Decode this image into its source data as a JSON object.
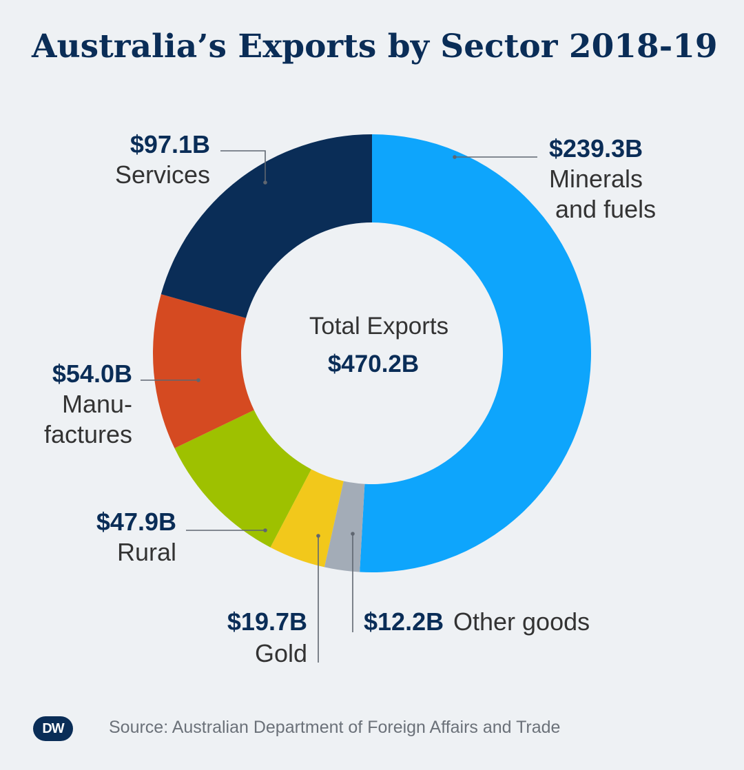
{
  "title": "Australia’s Exports by Sector 2018-19",
  "logo_text": "DW",
  "source": "Source: Australian Department of Foreign Affairs and Trade",
  "chart_data": {
    "type": "pie",
    "variant": "donut",
    "title": "Australia’s Exports by Sector 2018-19",
    "unit": "billion AUD",
    "center_label": "Total Exports",
    "center_value_label": "$470.2B",
    "total": 470.2,
    "slices": [
      {
        "key": "minerals",
        "value_label": "$239.3B",
        "label_lines": [
          "Minerals",
          "and fuels"
        ],
        "value": 239.3,
        "color": "#0ea5fc"
      },
      {
        "key": "other",
        "value_label": "$12.2B",
        "label_lines": [
          "Other goods"
        ],
        "value": 12.2,
        "color": "#a3acb7"
      },
      {
        "key": "gold",
        "value_label": "$19.7B",
        "label_lines": [
          "Gold"
        ],
        "value": 19.7,
        "color": "#f2c81b"
      },
      {
        "key": "rural",
        "value_label": "$47.9B",
        "label_lines": [
          "Rural"
        ],
        "value": 47.9,
        "color": "#9ec100"
      },
      {
        "key": "manufactures",
        "value_label": "$54.0B",
        "label_lines": [
          "Manu-",
          "factures"
        ],
        "value": 54.0,
        "color": "#d54a21"
      },
      {
        "key": "services",
        "value_label": "$97.1B",
        "label_lines": [
          "Services"
        ],
        "value": 97.1,
        "color": "#0a2d57"
      }
    ]
  }
}
